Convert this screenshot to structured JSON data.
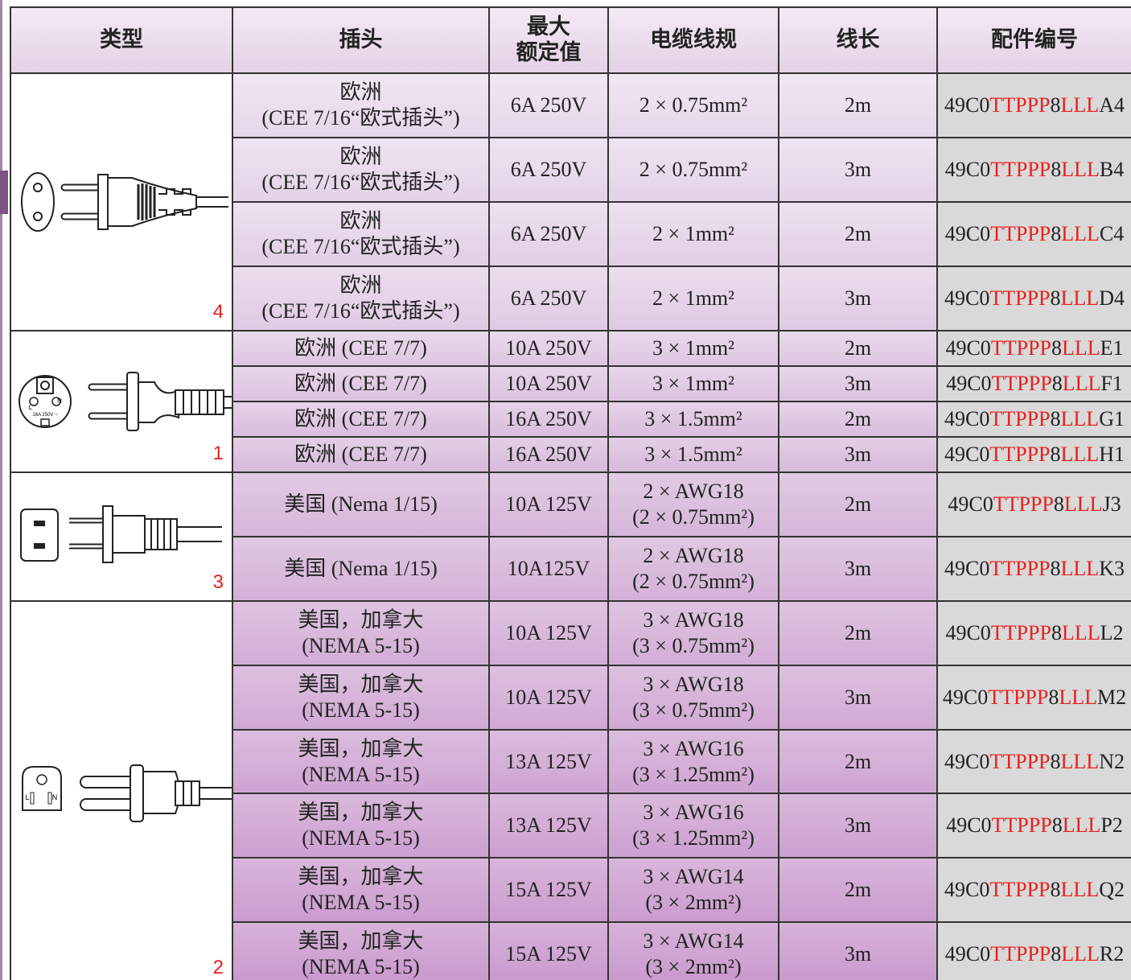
{
  "header": {
    "columns": [
      [
        "类型"
      ],
      [
        "插头"
      ],
      [
        "最大",
        "额定值"
      ],
      [
        "电缆线规"
      ],
      [
        "线长"
      ],
      [
        "配件编号"
      ]
    ]
  },
  "groups": [
    {
      "number": "4",
      "icon_labels": [],
      "rows": [
        {
          "plug": [
            "欧洲",
            "(CEE 7/16“欧式插头”)"
          ],
          "rating": "6A 250V",
          "cable": [
            "2 × 0.75mm²"
          ],
          "length": "2m",
          "part": [
            "49C0",
            "TTPPP",
            "8",
            "LLL",
            "A4"
          ]
        },
        {
          "plug": [
            "欧洲",
            "(CEE 7/16“欧式插头”)"
          ],
          "rating": "6A 250V",
          "cable": [
            "2 × 0.75mm²"
          ],
          "length": "3m",
          "part": [
            "49C0",
            "TTPPP",
            "8",
            "LLL",
            "B4"
          ]
        },
        {
          "plug": [
            "欧洲",
            "(CEE 7/16“欧式插头”)"
          ],
          "rating": "6A 250V",
          "cable": [
            "2 × 1mm²"
          ],
          "length": "2m",
          "part": [
            "49C0",
            "TTPPP",
            "8",
            "LLL",
            "C4"
          ]
        },
        {
          "plug": [
            "欧洲",
            "(CEE 7/16“欧式插头”)"
          ],
          "rating": "6A 250V",
          "cable": [
            "2 × 1mm²"
          ],
          "length": "3m",
          "part": [
            "49C0",
            "TTPPP",
            "8",
            "LLL",
            "D4"
          ]
        }
      ]
    },
    {
      "number": "1",
      "icon_labels": [
        "L",
        "N",
        "16A 250V ~"
      ],
      "rows": [
        {
          "plug": [
            "欧洲 (CEE 7/7)"
          ],
          "rating": "10A 250V",
          "cable": [
            "3 × 1mm²"
          ],
          "length": "2m",
          "part": [
            "49C0",
            "TTPPP",
            "8",
            "LLL",
            "E1"
          ]
        },
        {
          "plug": [
            "欧洲 (CEE 7/7)"
          ],
          "rating": "10A 250V",
          "cable": [
            "3 × 1mm²"
          ],
          "length": "3m",
          "part": [
            "49C0",
            "TTPPP",
            "8",
            "LLL",
            "F1"
          ]
        },
        {
          "plug": [
            "欧洲 (CEE 7/7)"
          ],
          "rating": "16A 250V",
          "cable": [
            "3 × 1.5mm²"
          ],
          "length": "2m",
          "part": [
            "49C0",
            "TTPPP",
            "8",
            "LLL",
            "G1"
          ]
        },
        {
          "plug": [
            "欧洲 (CEE 7/7)"
          ],
          "rating": "16A 250V",
          "cable": [
            "3 × 1.5mm²"
          ],
          "length": "3m",
          "part": [
            "49C0",
            "TTPPP",
            "8",
            "LLL",
            "H1"
          ]
        }
      ]
    },
    {
      "number": "3",
      "icon_labels": [],
      "rows": [
        {
          "plug": [
            "美国 (Nema 1/15)"
          ],
          "rating": "10A 125V",
          "cable": [
            "2 × AWG18",
            "(2 × 0.75mm²)"
          ],
          "length": "2m",
          "part": [
            "49C0",
            "TTPPP",
            "8",
            "LLL",
            "J3"
          ]
        },
        {
          "plug": [
            "美国 (Nema 1/15)"
          ],
          "rating": "10A125V",
          "cable": [
            "2 × AWG18",
            "(2 × 0.75mm²)"
          ],
          "length": "3m",
          "part": [
            "49C0",
            "TTPPP",
            "8",
            "LLL",
            "K3"
          ]
        }
      ]
    },
    {
      "number": "2",
      "icon_labels": [
        "L",
        "N"
      ],
      "rows": [
        {
          "plug": [
            "美国，加拿大",
            "(NEMA 5-15)"
          ],
          "rating": "10A 125V",
          "cable": [
            "3 × AWG18",
            "(3 × 0.75mm²)"
          ],
          "length": "2m",
          "part": [
            "49C0",
            "TTPPP",
            "8",
            "LLL",
            "L2"
          ]
        },
        {
          "plug": [
            "美国，加拿大",
            "(NEMA 5-15)"
          ],
          "rating": "10A 125V",
          "cable": [
            "3 × AWG18",
            "(3 × 0.75mm²)"
          ],
          "length": "3m",
          "part": [
            "49C0",
            "TTPPP",
            "8",
            "LLL",
            "M2"
          ]
        },
        {
          "plug": [
            "美国，加拿大",
            "(NEMA 5-15)"
          ],
          "rating": "13A 125V",
          "cable": [
            "3 × AWG16",
            "(3 × 1.25mm²)"
          ],
          "length": "2m",
          "part": [
            "49C0",
            "TTPPP",
            "8",
            "LLL",
            "N2"
          ]
        },
        {
          "plug": [
            "美国，加拿大",
            "(NEMA 5-15)"
          ],
          "rating": "13A 125V",
          "cable": [
            "3 × AWG16",
            "(3 × 1.25mm²)"
          ],
          "length": "3m",
          "part": [
            "49C0",
            "TTPPP",
            "8",
            "LLL",
            "P2"
          ]
        },
        {
          "plug": [
            "美国，加拿大",
            "(NEMA 5-15)"
          ],
          "rating": "15A 125V",
          "cable": [
            "3 × AWG14",
            "(3 × 2mm²)"
          ],
          "length": "2m",
          "part": [
            "49C0",
            "TTPPP",
            "8",
            "LLL",
            "Q2"
          ]
        },
        {
          "plug": [
            "美国，加拿大",
            "(NEMA 5-15)"
          ],
          "rating": "15A 125V",
          "cable": [
            "3 × AWG14",
            "(3 × 2mm²)"
          ],
          "length": "3m",
          "part": [
            "49C0",
            "TTPPP",
            "8",
            "LLL",
            "R2"
          ]
        }
      ]
    }
  ]
}
